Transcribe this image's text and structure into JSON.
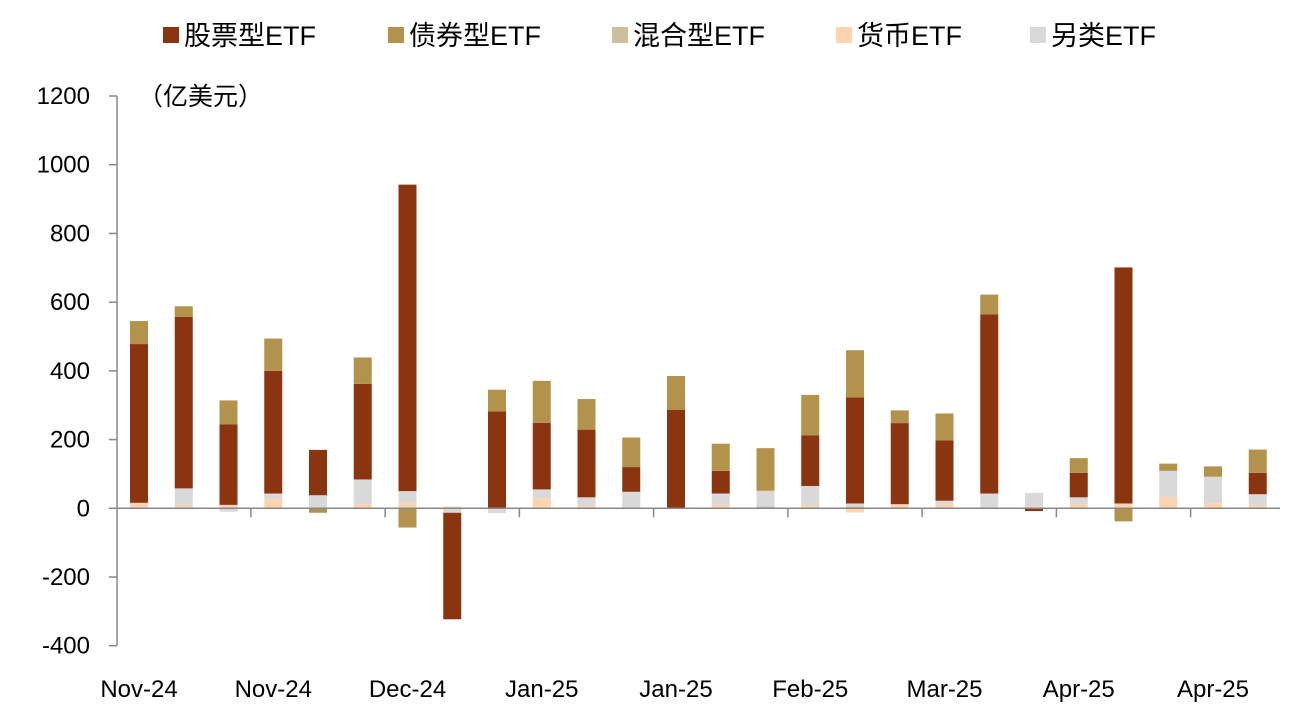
{
  "chart_data": {
    "type": "bar",
    "stacked": true,
    "unit_label": "（亿美元）",
    "ylim": [
      -400,
      1200
    ],
    "y_ticks": [
      -400,
      -200,
      0,
      200,
      400,
      600,
      800,
      1000,
      1200
    ],
    "x_tick_labels": [
      "Nov-24",
      "Nov-24",
      "Dec-24",
      "Jan-25",
      "Jan-25",
      "Feb-25",
      "Mar-25",
      "Apr-25",
      "Apr-25"
    ],
    "grid": false,
    "legend_position": "top",
    "series": [
      {
        "name": "股票型ETF",
        "color": "#8B3510",
        "values": [
          462,
          499,
          234,
          357,
          132,
          278,
          892,
          -310,
          282,
          194,
          197,
          72,
          287,
          66,
          0,
          147,
          309,
          236,
          176,
          521,
          -8,
          71,
          687,
          0,
          0,
          62
        ]
      },
      {
        "name": "债券型ETF",
        "color": "#B3924C",
        "values": [
          67,
          31,
          70,
          94,
          -13,
          77,
          -56,
          0,
          63,
          122,
          89,
          86,
          98,
          79,
          124,
          118,
          137,
          37,
          78,
          58,
          0,
          43,
          -38,
          21,
          30,
          68
        ]
      },
      {
        "name": "混合型ETF",
        "color": "#CBC09A",
        "values": [
          0,
          0,
          0,
          0,
          0,
          0,
          0,
          0,
          0,
          0,
          0,
          0,
          0,
          0,
          5,
          0,
          5,
          0,
          0,
          0,
          0,
          0,
          0,
          0,
          0,
          0
        ]
      },
      {
        "name": "货币ETF",
        "color": "#FDD3B0",
        "values": [
          14,
          10,
          10,
          26,
          0,
          12,
          17,
          5,
          0,
          29,
          8,
          0,
          0,
          10,
          0,
          8,
          -12,
          12,
          12,
          0,
          5,
          12,
          14,
          32,
          15,
          8
        ]
      },
      {
        "name": "另类ETF",
        "color": "#D9D9D9",
        "values": [
          2,
          48,
          -10,
          17,
          38,
          72,
          33,
          -13,
          -14,
          26,
          24,
          48,
          0,
          33,
          46,
          57,
          9,
          0,
          10,
          43,
          40,
          20,
          0,
          77,
          77,
          33
        ]
      }
    ]
  }
}
